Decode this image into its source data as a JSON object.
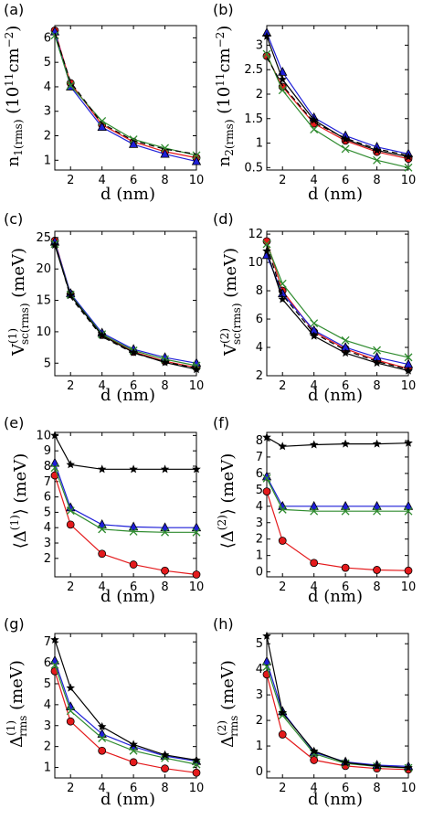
{
  "colors": {
    "red": "#e41a1c",
    "blue": "#1f1fd8",
    "green": "#2e8b2e",
    "black": "#000000"
  },
  "chart_data": [
    {
      "panel_label": "(a)",
      "type": "line",
      "xlabel": "d (nm)",
      "ylabel": "n1(rms) (10¹¹cm⁻²)",
      "xlim": [
        1,
        10
      ],
      "ylim": [
        0.6,
        6.5
      ],
      "xticks": [
        2,
        4,
        6,
        8,
        10
      ],
      "yticks": [
        1,
        2,
        3,
        4,
        5,
        6
      ],
      "series": [
        {
          "style": "red-circle",
          "x": [
            1,
            2,
            4,
            6,
            8,
            10
          ],
          "y": [
            6.3,
            4.15,
            2.45,
            1.75,
            1.35,
            1.1
          ]
        },
        {
          "style": "blue-triangle",
          "x": [
            1,
            2,
            4,
            6,
            8,
            10
          ],
          "y": [
            6.25,
            4.0,
            2.35,
            1.65,
            1.25,
            0.95
          ]
        },
        {
          "style": "green-x",
          "x": [
            1,
            2,
            4,
            6,
            8,
            10
          ],
          "y": [
            6.1,
            4.05,
            2.6,
            1.85,
            1.5,
            1.2
          ]
        },
        {
          "style": "black-dashed",
          "x": [
            1,
            2,
            4,
            6,
            8,
            10
          ],
          "y": [
            6.2,
            4.2,
            2.5,
            1.8,
            1.45,
            1.25
          ]
        }
      ]
    },
    {
      "panel_label": "(b)",
      "type": "line",
      "xlabel": "d (nm)",
      "ylabel": "n2(rms) (10¹¹cm⁻²)",
      "xlim": [
        1,
        10
      ],
      "ylim": [
        0.45,
        3.4
      ],
      "xticks": [
        2,
        4,
        6,
        8,
        10
      ],
      "yticks": [
        0.5,
        1.0,
        1.5,
        2.0,
        2.5,
        3.0
      ],
      "series": [
        {
          "style": "red-circle",
          "x": [
            1,
            2,
            4,
            6,
            8,
            10
          ],
          "y": [
            2.78,
            2.15,
            1.4,
            1.05,
            0.82,
            0.68
          ]
        },
        {
          "style": "blue-triangle",
          "x": [
            1,
            2,
            4,
            6,
            8,
            10
          ],
          "y": [
            3.25,
            2.45,
            1.52,
            1.15,
            0.92,
            0.78
          ]
        },
        {
          "style": "green-x",
          "x": [
            1,
            2,
            4,
            6,
            8,
            10
          ],
          "y": [
            2.82,
            2.08,
            1.28,
            0.88,
            0.65,
            0.5
          ]
        },
        {
          "style": "black-star",
          "x": [
            1,
            2,
            4,
            6,
            8,
            10
          ],
          "y": [
            3.18,
            2.3,
            1.47,
            1.08,
            0.85,
            0.72
          ]
        },
        {
          "style": "black-dashed",
          "x": [
            1,
            2,
            4,
            6,
            8,
            10
          ],
          "y": [
            2.75,
            2.18,
            1.42,
            1.1,
            0.88,
            0.75
          ]
        }
      ]
    },
    {
      "panel_label": "(c)",
      "type": "line",
      "xlabel": "d (nm)",
      "ylabel": "V(1)sc(rms) (meV)",
      "xlim": [
        1,
        10
      ],
      "ylim": [
        3,
        26
      ],
      "xticks": [
        2,
        4,
        6,
        8,
        10
      ],
      "yticks": [
        5,
        10,
        15,
        20,
        25
      ],
      "series": [
        {
          "style": "red-circle",
          "x": [
            1,
            2,
            4,
            6,
            8,
            10
          ],
          "y": [
            24.5,
            16.0,
            9.5,
            6.8,
            5.3,
            4.3
          ]
        },
        {
          "style": "blue-triangle",
          "x": [
            1,
            2,
            4,
            6,
            8,
            10
          ],
          "y": [
            24.3,
            16.1,
            9.8,
            7.2,
            5.9,
            5.0
          ]
        },
        {
          "style": "green-x",
          "x": [
            1,
            2,
            4,
            6,
            8,
            10
          ],
          "y": [
            24.0,
            15.9,
            9.6,
            7.0,
            5.6,
            4.6
          ]
        },
        {
          "style": "black-star",
          "x": [
            1,
            2,
            4,
            6,
            8,
            10
          ],
          "y": [
            23.8,
            15.8,
            9.4,
            6.7,
            5.1,
            4.0
          ]
        },
        {
          "style": "black-dashed",
          "x": [
            1,
            2,
            4,
            6,
            8,
            10
          ],
          "y": [
            24.1,
            15.5,
            9.2,
            6.6,
            5.2,
            4.2
          ]
        }
      ]
    },
    {
      "panel_label": "(d)",
      "type": "line",
      "xlabel": "d (nm)",
      "ylabel": "V(2)sc(rms) (meV)",
      "xlim": [
        1,
        10
      ],
      "ylim": [
        2,
        12.2
      ],
      "xticks": [
        2,
        4,
        6,
        8,
        10
      ],
      "yticks": [
        2,
        4,
        6,
        8,
        10,
        12
      ],
      "series": [
        {
          "style": "red-circle",
          "x": [
            1,
            2,
            4,
            6,
            8,
            10
          ],
          "y": [
            11.5,
            8.0,
            5.1,
            3.9,
            3.1,
            2.5
          ]
        },
        {
          "style": "blue-triangle",
          "x": [
            1,
            2,
            4,
            6,
            8,
            10
          ],
          "y": [
            10.5,
            7.8,
            5.2,
            4.0,
            3.3,
            2.8
          ]
        },
        {
          "style": "green-x",
          "x": [
            1,
            2,
            4,
            6,
            8,
            10
          ],
          "y": [
            11.3,
            8.5,
            5.7,
            4.5,
            3.8,
            3.3
          ]
        },
        {
          "style": "black-star",
          "x": [
            1,
            2,
            4,
            6,
            8,
            10
          ],
          "y": [
            10.8,
            7.4,
            4.8,
            3.6,
            2.9,
            2.35
          ]
        },
        {
          "style": "black-dashed",
          "x": [
            1,
            2,
            4,
            6,
            8,
            10
          ],
          "y": [
            11.2,
            7.7,
            5.0,
            3.8,
            3.0,
            2.45
          ]
        }
      ]
    },
    {
      "panel_label": "(e)",
      "type": "line",
      "xlabel": "d (nm)",
      "ylabel": "⟨Δ(1)⟩ (meV)",
      "xlim": [
        1,
        10
      ],
      "ylim": [
        0.8,
        10.2
      ],
      "xticks": [
        2,
        4,
        6,
        8,
        10
      ],
      "yticks": [
        2,
        3,
        4,
        5,
        6,
        7,
        8,
        9,
        10
      ],
      "series": [
        {
          "style": "red-circle",
          "x": [
            1,
            2,
            4,
            6,
            8,
            10
          ],
          "y": [
            7.4,
            4.2,
            2.3,
            1.6,
            1.2,
            0.95
          ]
        },
        {
          "style": "blue-triangle",
          "x": [
            1,
            2,
            4,
            6,
            8,
            10
          ],
          "y": [
            8.2,
            5.3,
            4.2,
            4.05,
            4.0,
            4.0
          ]
        },
        {
          "style": "green-x",
          "x": [
            1,
            2,
            4,
            6,
            8,
            10
          ],
          "y": [
            7.9,
            5.1,
            3.9,
            3.75,
            3.7,
            3.7
          ]
        },
        {
          "style": "black-star",
          "x": [
            1,
            2,
            4,
            6,
            8,
            10
          ],
          "y": [
            10.0,
            8.1,
            7.8,
            7.8,
            7.8,
            7.8
          ]
        }
      ]
    },
    {
      "panel_label": "(f)",
      "type": "line",
      "xlabel": "d (nm)",
      "ylabel": "⟨Δ(2)⟩ (meV)",
      "xlim": [
        1,
        10
      ],
      "ylim": [
        -0.3,
        8.5
      ],
      "xticks": [
        2,
        4,
        6,
        8,
        10
      ],
      "yticks": [
        0,
        1,
        2,
        3,
        4,
        5,
        6,
        7,
        8
      ],
      "series": [
        {
          "style": "red-circle",
          "x": [
            1,
            2,
            4,
            6,
            8,
            10
          ],
          "y": [
            4.9,
            1.9,
            0.55,
            0.25,
            0.12,
            0.08
          ]
        },
        {
          "style": "blue-triangle",
          "x": [
            1,
            2,
            4,
            6,
            8,
            10
          ],
          "y": [
            5.8,
            4.0,
            4.0,
            4.0,
            4.0,
            4.0
          ]
        },
        {
          "style": "green-x",
          "x": [
            1,
            2,
            4,
            6,
            8,
            10
          ],
          "y": [
            5.7,
            3.8,
            3.7,
            3.7,
            3.7,
            3.7
          ]
        },
        {
          "style": "black-star",
          "x": [
            1,
            2,
            4,
            6,
            8,
            10
          ],
          "y": [
            8.2,
            7.65,
            7.75,
            7.8,
            7.8,
            7.85
          ]
        }
      ]
    },
    {
      "panel_label": "(g)",
      "type": "line",
      "xlabel": "d (nm)",
      "ylabel": "Δ(1)rms (meV)",
      "xlim": [
        1,
        10
      ],
      "ylim": [
        0.5,
        7.4
      ],
      "xticks": [
        2,
        4,
        6,
        8,
        10
      ],
      "yticks": [
        1,
        2,
        3,
        4,
        5,
        6,
        7
      ],
      "series": [
        {
          "style": "red-circle",
          "x": [
            1,
            2,
            4,
            6,
            8,
            10
          ],
          "y": [
            5.6,
            3.2,
            1.8,
            1.25,
            0.95,
            0.75
          ]
        },
        {
          "style": "blue-triangle",
          "x": [
            1,
            2,
            4,
            6,
            8,
            10
          ],
          "y": [
            6.1,
            3.9,
            2.6,
            2.0,
            1.55,
            1.3
          ]
        },
        {
          "style": "green-x",
          "x": [
            1,
            2,
            4,
            6,
            8,
            10
          ],
          "y": [
            5.9,
            3.7,
            2.4,
            1.8,
            1.45,
            1.15
          ]
        },
        {
          "style": "black-star",
          "x": [
            1,
            2,
            4,
            6,
            8,
            10
          ],
          "y": [
            7.1,
            4.8,
            2.95,
            2.1,
            1.6,
            1.35
          ]
        }
      ]
    },
    {
      "panel_label": "(h)",
      "type": "line",
      "xlabel": "d (nm)",
      "ylabel": "Δ(2)rms (meV)",
      "xlim": [
        1,
        10
      ],
      "ylim": [
        -0.25,
        5.4
      ],
      "xticks": [
        2,
        4,
        6,
        8,
        10
      ],
      "yticks": [
        0,
        1,
        2,
        3,
        4,
        5
      ],
      "series": [
        {
          "style": "red-circle",
          "x": [
            1,
            2,
            4,
            6,
            8,
            10
          ],
          "y": [
            3.8,
            1.45,
            0.45,
            0.22,
            0.12,
            0.08
          ]
        },
        {
          "style": "blue-triangle",
          "x": [
            1,
            2,
            4,
            6,
            8,
            10
          ],
          "y": [
            4.3,
            2.35,
            0.75,
            0.38,
            0.25,
            0.2
          ]
        },
        {
          "style": "green-x",
          "x": [
            1,
            2,
            4,
            6,
            8,
            10
          ],
          "y": [
            4.1,
            2.2,
            0.7,
            0.32,
            0.2,
            0.14
          ]
        },
        {
          "style": "black-star",
          "x": [
            1,
            2,
            4,
            6,
            8,
            10
          ],
          "y": [
            5.3,
            2.3,
            0.8,
            0.35,
            0.22,
            0.15
          ]
        }
      ]
    }
  ]
}
